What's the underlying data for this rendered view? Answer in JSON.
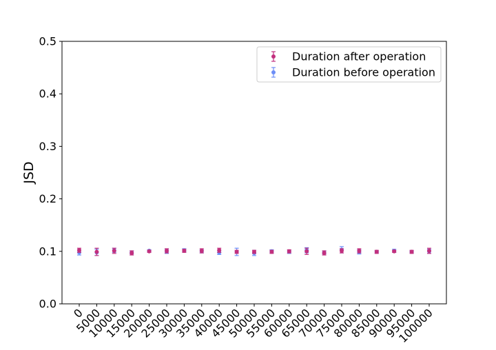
{
  "chart_data": {
    "type": "scatter",
    "title": "",
    "xlabel": "",
    "ylabel": "JSD",
    "ylim": [
      0.0,
      0.5
    ],
    "yticks": [
      "0.0",
      "0.1",
      "0.2",
      "0.3",
      "0.4",
      "0.5"
    ],
    "categories": [
      "0",
      "5000",
      "10000",
      "15000",
      "20000",
      "25000",
      "30000",
      "35000",
      "40000",
      "45000",
      "50000",
      "55000",
      "60000",
      "65000",
      "70000",
      "75000",
      "80000",
      "85000",
      "90000",
      "95000",
      "100000"
    ],
    "grid": false,
    "legend_position": "top-right",
    "series": [
      {
        "name": "Duration after operation",
        "color": "#c2307e",
        "values": [
          0.102,
          0.099,
          0.101,
          0.097,
          0.1,
          0.101,
          0.101,
          0.101,
          0.102,
          0.099,
          0.099,
          0.099,
          0.1,
          0.1,
          0.097,
          0.101,
          0.101,
          0.099,
          0.1,
          0.099,
          0.101
        ],
        "errors": [
          0.004,
          0.007,
          0.005,
          0.004,
          0.002,
          0.004,
          0.003,
          0.004,
          0.004,
          0.003,
          0.003,
          0.003,
          0.003,
          0.006,
          0.004,
          0.004,
          0.004,
          0.003,
          0.002,
          0.003,
          0.005
        ]
      },
      {
        "name": "Duration before operation",
        "color": "#6d8ef7",
        "values": [
          0.098,
          0.098,
          0.102,
          0.098,
          0.101,
          0.1,
          0.102,
          0.1,
          0.098,
          0.099,
          0.097,
          0.1,
          0.099,
          0.102,
          0.098,
          0.103,
          0.099,
          0.099,
          0.101,
          0.099,
          0.1
        ],
        "errors": [
          0.005,
          0.006,
          0.004,
          0.003,
          0.002,
          0.004,
          0.003,
          0.003,
          0.004,
          0.007,
          0.005,
          0.003,
          0.003,
          0.005,
          0.003,
          0.006,
          0.004,
          0.002,
          0.003,
          0.002,
          0.004
        ]
      }
    ]
  }
}
